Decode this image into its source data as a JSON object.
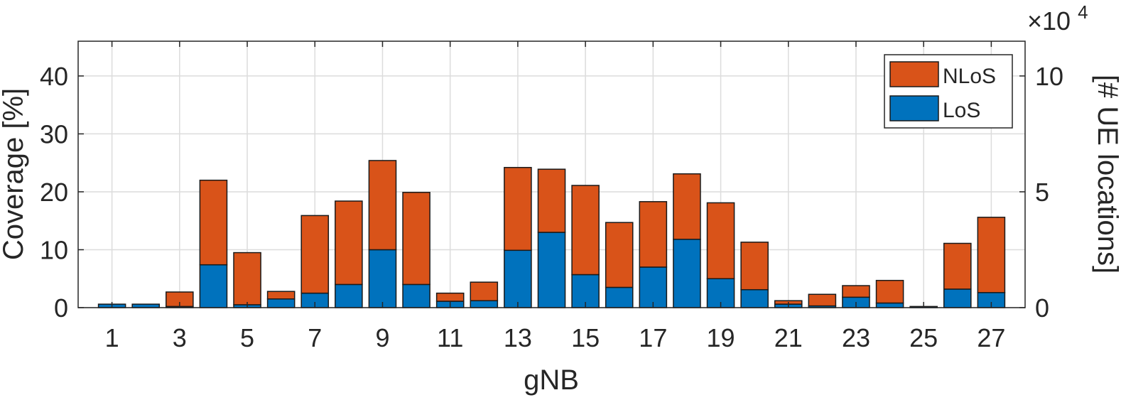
{
  "chart_data": {
    "type": "bar",
    "stacked": true,
    "xlabel": "gNB",
    "ylabel": "Coverage [%]",
    "y2label": "[# UE locations]",
    "y2_multiplier_label": "×10",
    "y2_multiplier_exponent": "4",
    "ylim": [
      0,
      46
    ],
    "y2lim": [
      0,
      11.5
    ],
    "yticks": [
      "0",
      "10",
      "20",
      "30",
      "40"
    ],
    "y2ticks": [
      "0",
      "5",
      "10"
    ],
    "xticks": [
      "1",
      "3",
      "5",
      "7",
      "9",
      "11",
      "13",
      "15",
      "17",
      "19",
      "21",
      "23",
      "25",
      "27"
    ],
    "grid": true,
    "legend_position": "top-right",
    "categories": [
      1,
      2,
      3,
      4,
      5,
      6,
      7,
      8,
      9,
      10,
      11,
      12,
      13,
      14,
      15,
      16,
      17,
      18,
      19,
      20,
      21,
      22,
      23,
      24,
      25,
      26,
      27
    ],
    "series": [
      {
        "name": "LoS",
        "color": "#0072BD",
        "values": [
          0.6,
          0.6,
          0.2,
          7.4,
          0.5,
          1.5,
          2.5,
          4.0,
          10.0,
          4.0,
          1.1,
          1.2,
          9.9,
          13.0,
          5.7,
          3.5,
          7.0,
          11.8,
          5.0,
          3.1,
          0.6,
          0.3,
          1.8,
          0.8,
          0.2,
          3.2,
          2.6
        ]
      },
      {
        "name": "NLoS",
        "color": "#D95319",
        "values": [
          0.0,
          0.0,
          2.5,
          14.6,
          9.0,
          1.3,
          13.4,
          14.4,
          15.4,
          15.9,
          1.4,
          3.2,
          14.3,
          10.9,
          15.4,
          11.2,
          11.3,
          11.3,
          13.1,
          8.2,
          0.6,
          2.0,
          2.0,
          3.9,
          0.0,
          7.9,
          13.0
        ]
      }
    ]
  }
}
